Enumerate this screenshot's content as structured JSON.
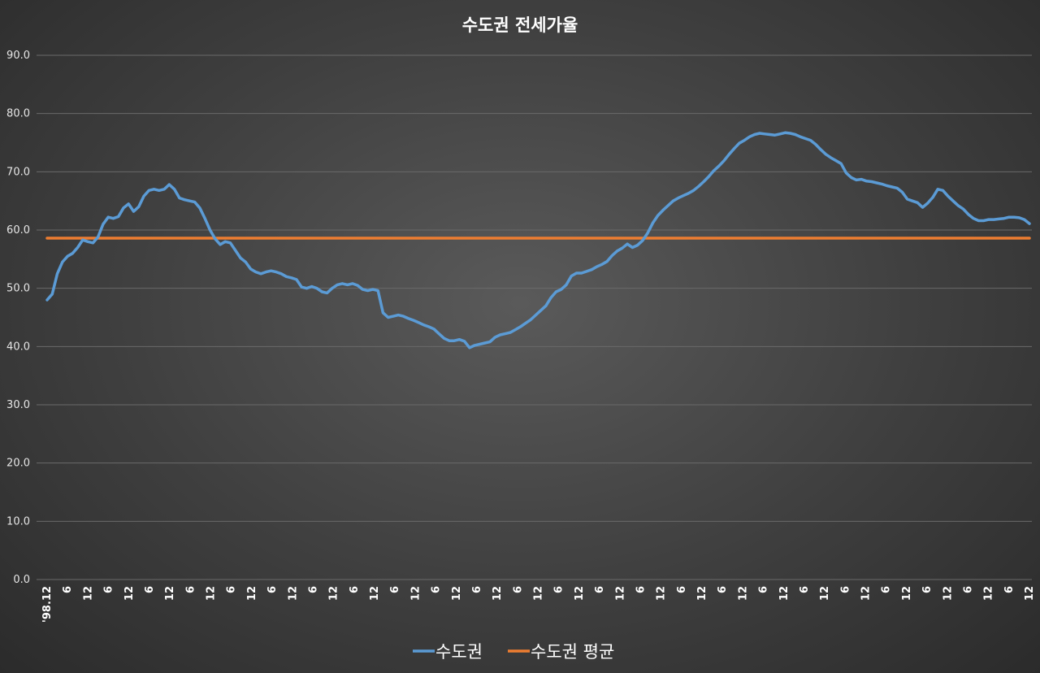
{
  "chart_data": {
    "type": "line",
    "title": "수도권 전세가율",
    "xlabel": "",
    "ylabel": "",
    "ylim": [
      0,
      90
    ],
    "y_ticks": [
      "0.0",
      "10.0",
      "20.0",
      "30.0",
      "40.0",
      "50.0",
      "60.0",
      "70.0",
      "80.0",
      "90.0"
    ],
    "x_tick_labels": [
      "'98.12",
      "6",
      "12",
      "6",
      "12",
      "6",
      "12",
      "6",
      "12",
      "6",
      "12",
      "6",
      "12",
      "6",
      "12",
      "6",
      "12",
      "6",
      "12",
      "6",
      "12",
      "6",
      "12",
      "6",
      "12",
      "6",
      "12",
      "6",
      "12",
      "6",
      "12",
      "6",
      "12",
      "6",
      "12",
      "6",
      "12",
      "6",
      "12",
      "6",
      "12",
      "6",
      "12",
      "6",
      "12",
      "6",
      "12",
      "6",
      "12"
    ],
    "grid": true,
    "legend_position": "bottom",
    "series": [
      {
        "name": "수도권",
        "color": "#5b9bd5",
        "values": [
          48.0,
          49.0,
          52.5,
          54.5,
          55.5,
          56.0,
          57.0,
          58.3,
          58.0,
          57.8,
          58.8,
          61.0,
          62.2,
          62.0,
          62.3,
          63.8,
          64.5,
          63.2,
          64.0,
          65.8,
          66.8,
          67.0,
          66.8,
          67.0,
          67.8,
          67.0,
          65.5,
          65.2,
          65.0,
          64.8,
          63.8,
          62.0,
          60.0,
          58.5,
          57.5,
          58.0,
          57.8,
          56.5,
          55.2,
          54.5,
          53.3,
          52.8,
          52.5,
          52.8,
          53.0,
          52.8,
          52.5,
          52.0,
          51.8,
          51.5,
          50.2,
          50.0,
          50.3,
          50.0,
          49.4,
          49.2,
          50.0,
          50.6,
          50.8,
          50.6,
          50.8,
          50.5,
          49.8,
          49.6,
          49.8,
          49.6,
          45.8,
          45.0,
          45.2,
          45.4,
          45.2,
          44.8,
          44.5,
          44.1,
          43.7,
          43.4,
          43.0,
          42.2,
          41.4,
          41.0,
          41.0,
          41.2,
          40.9,
          39.8,
          40.2,
          40.4,
          40.6,
          40.8,
          41.6,
          42.0,
          42.2,
          42.4,
          42.9,
          43.4,
          44.0,
          44.6,
          45.4,
          46.2,
          47.0,
          48.4,
          49.4,
          49.8,
          50.6,
          52.1,
          52.6,
          52.6,
          52.9,
          53.2,
          53.7,
          54.1,
          54.6,
          55.6,
          56.4,
          56.9,
          57.6,
          57.0,
          57.4,
          58.2,
          59.5,
          61.2,
          62.5,
          63.4,
          64.2,
          65.0,
          65.5,
          65.9,
          66.3,
          66.8,
          67.5,
          68.3,
          69.2,
          70.2,
          71.0,
          71.9,
          73.0,
          74.0,
          74.9,
          75.4,
          76.0,
          76.4,
          76.6,
          76.5,
          76.4,
          76.3,
          76.5,
          76.7,
          76.6,
          76.4,
          76.0,
          75.7,
          75.4,
          74.7,
          73.8,
          73.0,
          72.4,
          71.9,
          71.4,
          69.8,
          69.0,
          68.6,
          68.7,
          68.4,
          68.3,
          68.1,
          67.9,
          67.6,
          67.4,
          67.2,
          66.5,
          65.3,
          65.0,
          64.7,
          63.9,
          64.6,
          65.6,
          67.0,
          66.8,
          65.8,
          65.0,
          64.2,
          63.6,
          62.7,
          62.0,
          61.6,
          61.6,
          61.8,
          61.8,
          61.9,
          62.0,
          62.2,
          62.2,
          62.1,
          61.8,
          61.1
        ]
      },
      {
        "name": "수도권 평균",
        "color": "#ed7d31",
        "values": [
          58.6,
          58.6
        ]
      }
    ]
  }
}
